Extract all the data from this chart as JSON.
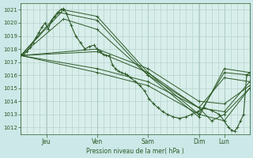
{
  "xlabel": "Pression niveau de la mer( hPa )",
  "bg_color": "#cce8e8",
  "plot_bg": "#d8eeea",
  "grid_color": "#b0ccc8",
  "line_color": "#2d5a27",
  "ylim": [
    1011.5,
    1021.5
  ],
  "yticks": [
    1012,
    1013,
    1014,
    1015,
    1016,
    1017,
    1018,
    1019,
    1020,
    1021
  ],
  "day_labels": [
    "Jeu",
    "Ven",
    "Sam",
    "Dim",
    "Lun"
  ],
  "day_positions": [
    0.167,
    0.5,
    0.833,
    1.167,
    1.333
  ],
  "xlim": [
    0.0,
    1.5
  ],
  "main_x": [
    0.0,
    0.02,
    0.04,
    0.06,
    0.08,
    0.1,
    0.12,
    0.14,
    0.16,
    0.18,
    0.2,
    0.22,
    0.24,
    0.26,
    0.28,
    0.3,
    0.33,
    0.36,
    0.39,
    0.42,
    0.45,
    0.48,
    0.5,
    0.52,
    0.54,
    0.56,
    0.58,
    0.6,
    0.62,
    0.64,
    0.66,
    0.68,
    0.7,
    0.72,
    0.75,
    0.78,
    0.81,
    0.84,
    0.87,
    0.9,
    0.93,
    0.96,
    1.0,
    1.04,
    1.08,
    1.12,
    1.16,
    1.2,
    1.25,
    1.3,
    1.333,
    1.36,
    1.38,
    1.4,
    1.42,
    1.44,
    1.46,
    1.48,
    1.5
  ],
  "main_y": [
    1017.5,
    1017.6,
    1017.8,
    1018.1,
    1018.5,
    1018.9,
    1019.3,
    1019.7,
    1020.0,
    1019.5,
    1020.2,
    1020.5,
    1020.8,
    1021.0,
    1021.1,
    1020.7,
    1019.8,
    1019.0,
    1018.5,
    1018.0,
    1018.2,
    1018.3,
    1018.0,
    1017.8,
    1017.6,
    1017.5,
    1017.5,
    1016.8,
    1016.5,
    1016.3,
    1016.2,
    1016.1,
    1016.0,
    1015.8,
    1015.5,
    1015.2,
    1014.8,
    1014.2,
    1013.8,
    1013.5,
    1013.2,
    1013.0,
    1012.8,
    1012.7,
    1012.8,
    1013.0,
    1013.2,
    1013.5,
    1013.3,
    1013.0,
    1012.5,
    1012.0,
    1011.8,
    1011.7,
    1012.0,
    1012.5,
    1013.0,
    1016.0,
    1016.2
  ],
  "fan_lines": [
    {
      "x": [
        0.0,
        0.28,
        0.5,
        0.833,
        1.167,
        1.333,
        1.5
      ],
      "y": [
        1017.5,
        1021.0,
        1020.5,
        1016.2,
        1013.0,
        1016.2,
        1016.0
      ]
    },
    {
      "x": [
        0.0,
        0.25,
        0.5,
        0.833,
        1.167,
        1.333,
        1.5
      ],
      "y": [
        1017.5,
        1020.8,
        1020.2,
        1016.0,
        1012.8,
        1016.5,
        1016.2
      ]
    },
    {
      "x": [
        0.0,
        0.28,
        0.5,
        0.833,
        1.167,
        1.333,
        1.5
      ],
      "y": [
        1017.5,
        1020.3,
        1019.5,
        1016.0,
        1013.5,
        1015.8,
        1015.5
      ]
    },
    {
      "x": [
        0.0,
        0.5,
        0.833,
        1.167,
        1.333,
        1.5
      ],
      "y": [
        1017.5,
        1018.0,
        1016.5,
        1014.0,
        1013.8,
        1015.2
      ]
    },
    {
      "x": [
        0.0,
        0.5,
        0.833,
        1.167,
        1.333,
        1.5
      ],
      "y": [
        1017.5,
        1017.8,
        1016.2,
        1013.5,
        1013.2,
        1015.5
      ]
    },
    {
      "x": [
        0.0,
        0.5,
        0.833,
        1.167,
        1.25,
        1.333,
        1.5
      ],
      "y": [
        1017.5,
        1016.5,
        1015.5,
        1013.5,
        1012.5,
        1013.0,
        1015.0
      ]
    },
    {
      "x": [
        0.0,
        0.5,
        0.833,
        1.167,
        1.333,
        1.5
      ],
      "y": [
        1017.5,
        1016.2,
        1015.2,
        1013.0,
        1012.5,
        1015.0
      ]
    }
  ]
}
